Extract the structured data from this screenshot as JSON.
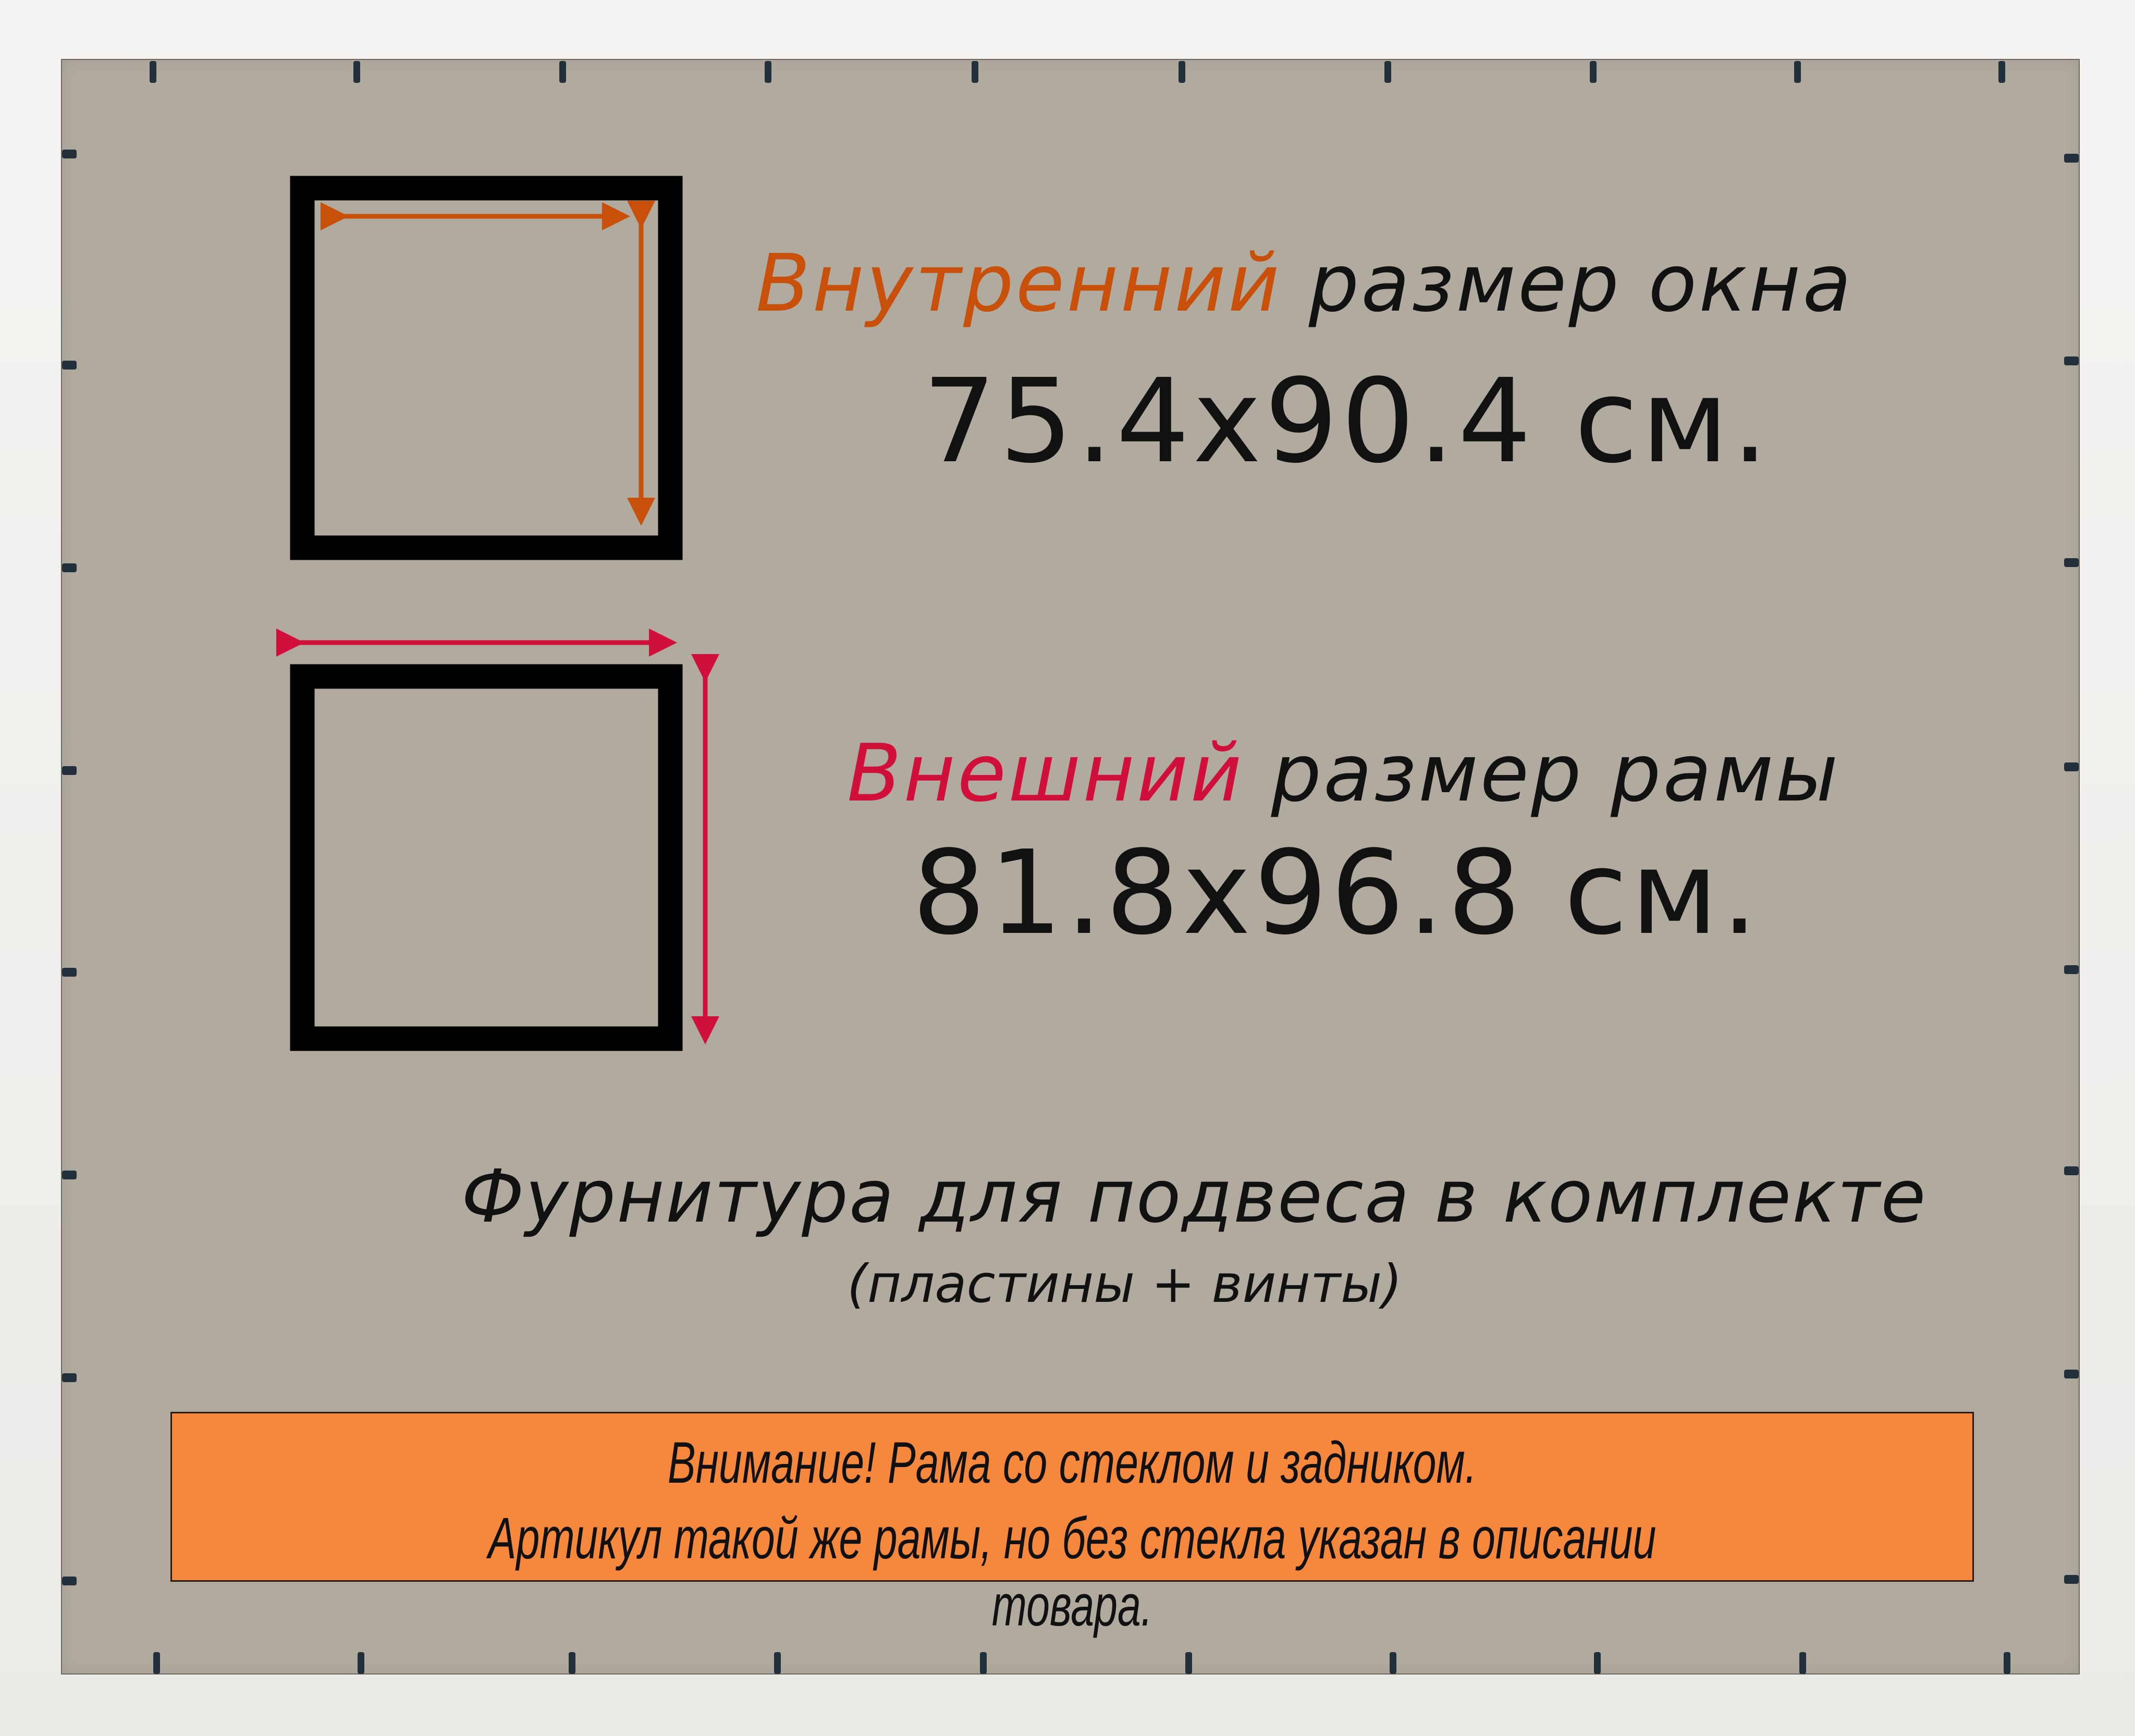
{
  "inner_size": {
    "highlight": "Внутренний",
    "rest": "размер окна",
    "value": "75.4x90.4 см.",
    "color": "#c8500a"
  },
  "outer_size": {
    "highlight": "Внешний",
    "rest": "размер рамы",
    "value": "81.8x96.8 см.",
    "color": "#d0103a"
  },
  "hardware": {
    "title": "Фурнитура для подвеса в комплекте",
    "subtitle": "(пластины + винты)"
  },
  "notice": {
    "line1": "Внимание! Рама со стеклом и задником.",
    "line2": "Артикул такой же рамы, но без стекла указан в описании товара.",
    "background": "#f5883c"
  },
  "colors": {
    "backing": "#b1aa9f",
    "frame": "#f1efec",
    "clips": "#22303c"
  }
}
